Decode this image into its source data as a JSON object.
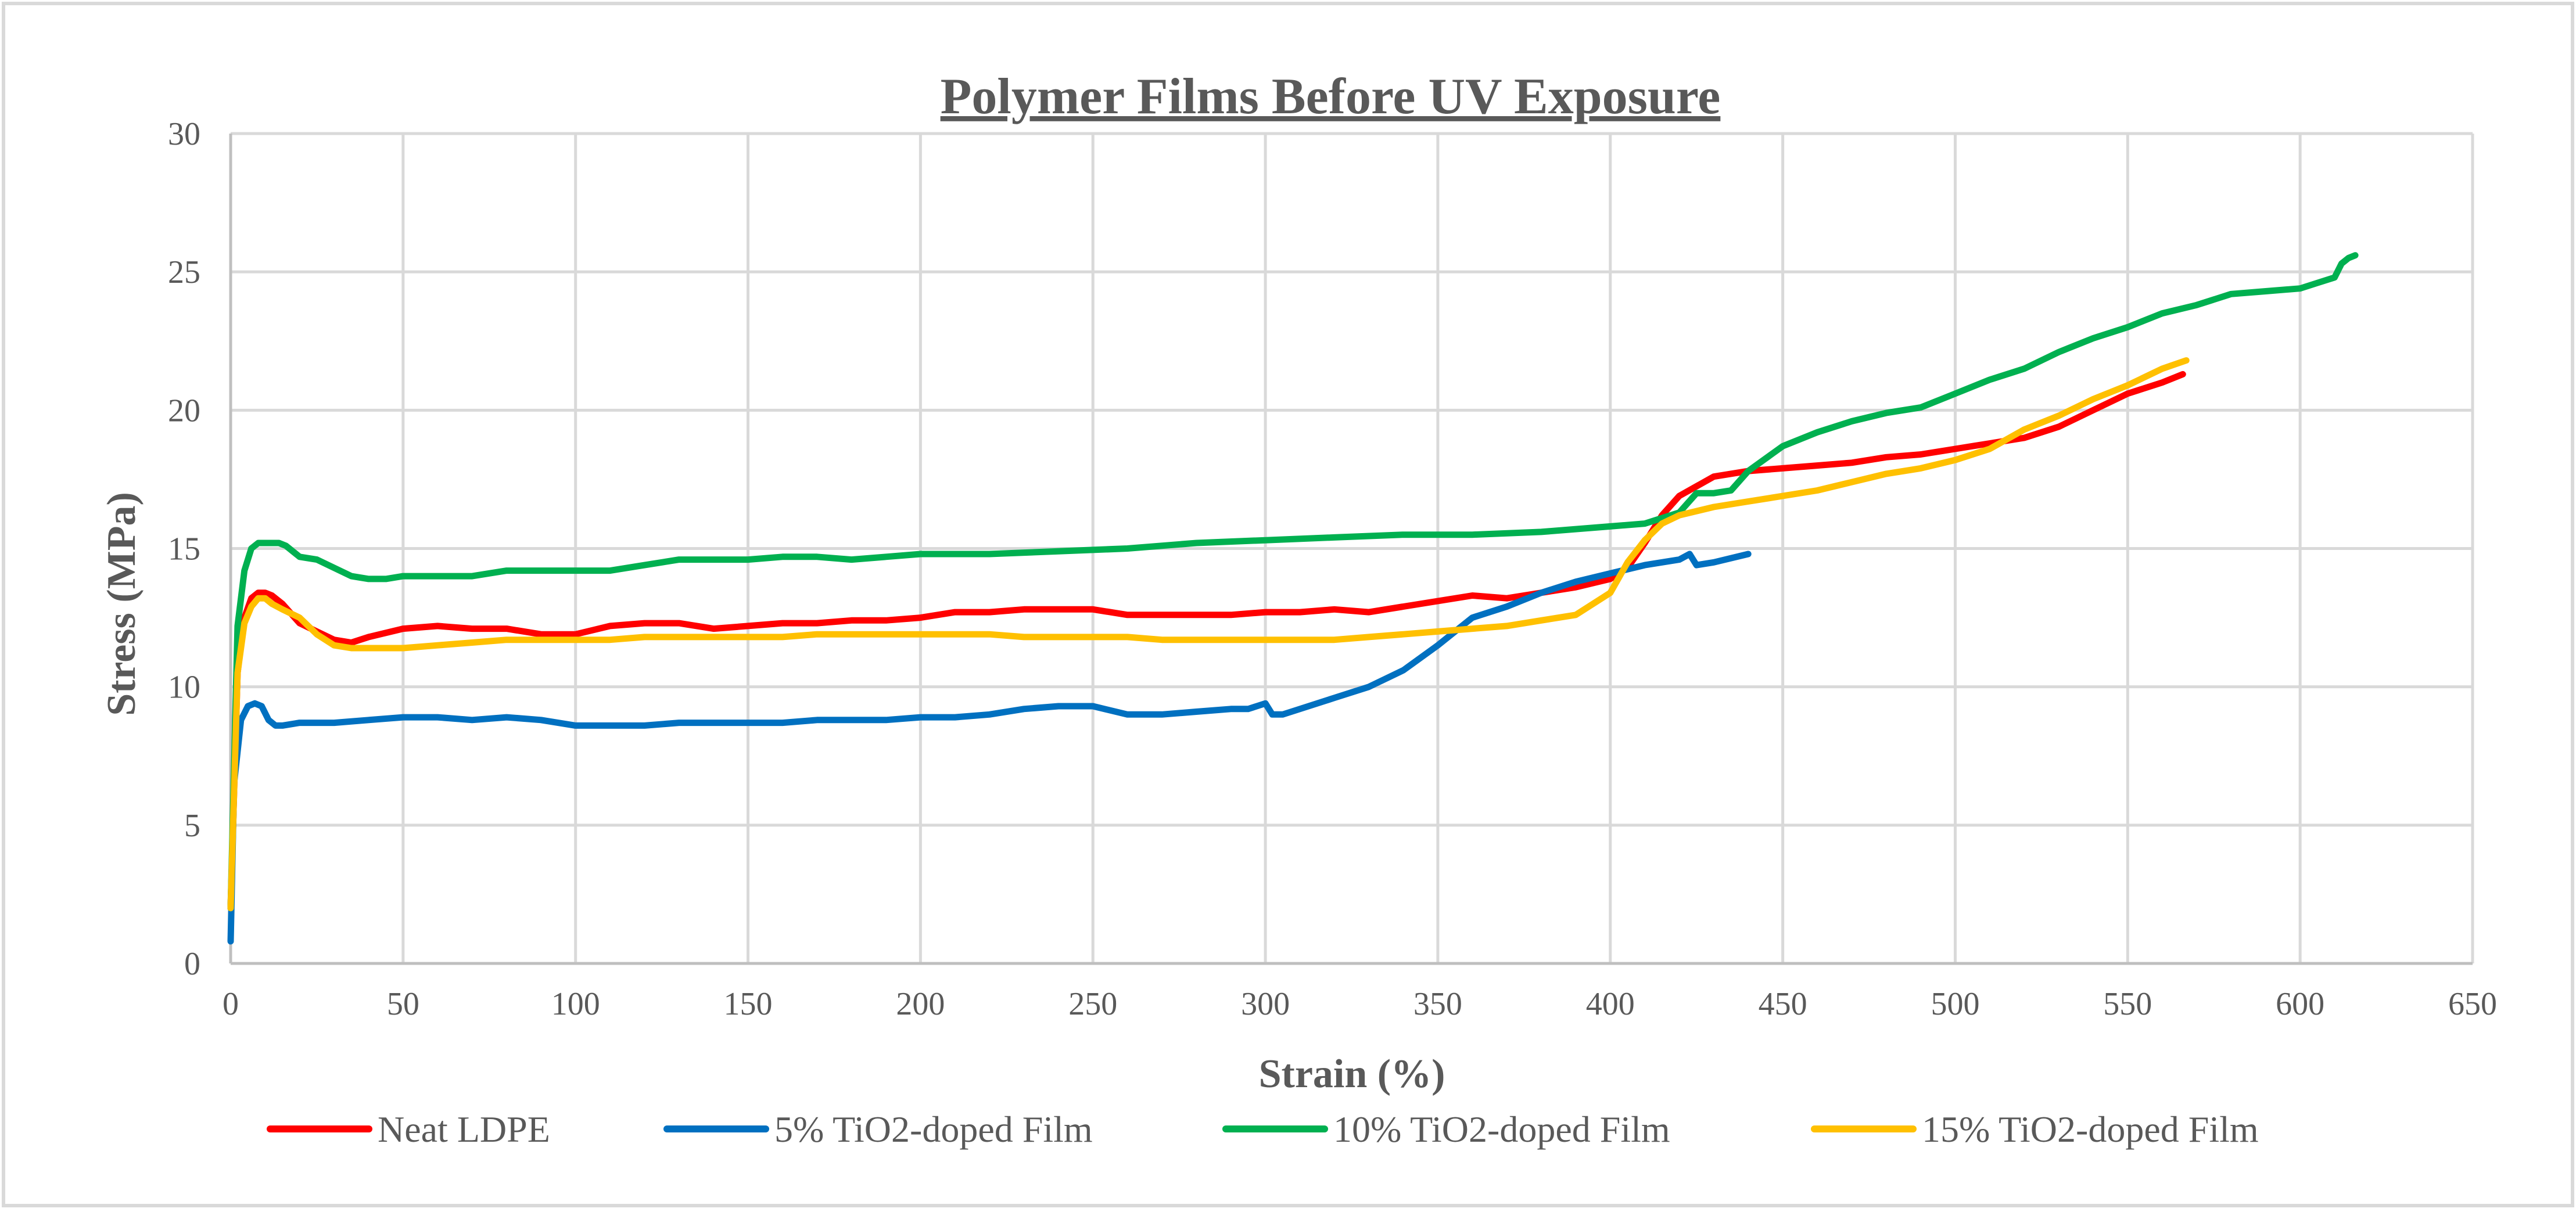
{
  "chart_data": {
    "type": "line",
    "title": "Polymer Films Before UV Exposure",
    "xlabel": "Strain (%)",
    "ylabel": "Stress (MPa)",
    "xlim": [
      0,
      650
    ],
    "ylim": [
      0,
      30
    ],
    "x_ticks": [
      "0",
      "50",
      "100",
      "150",
      "200",
      "250",
      "300",
      "350",
      "400",
      "450",
      "500",
      "550",
      "600",
      "650"
    ],
    "y_ticks": [
      "0",
      "5",
      "10",
      "15",
      "20",
      "25",
      "30"
    ],
    "grid": true,
    "legend_position": "bottom",
    "series": [
      {
        "name": "Neat LDPE",
        "color": "#ff0000",
        "x": [
          0,
          2,
          4,
          6,
          8,
          10,
          12,
          15,
          20,
          25,
          30,
          35,
          40,
          50,
          60,
          70,
          80,
          90,
          100,
          110,
          120,
          130,
          140,
          150,
          160,
          170,
          180,
          190,
          200,
          210,
          220,
          230,
          240,
          250,
          260,
          270,
          280,
          290,
          300,
          310,
          320,
          330,
          340,
          350,
          360,
          370,
          380,
          390,
          400,
          405,
          410,
          415,
          420,
          430,
          440,
          450,
          460,
          470,
          480,
          490,
          500,
          510,
          520,
          530,
          540,
          550,
          560,
          566
        ],
        "y": [
          2,
          10.5,
          12.5,
          13.2,
          13.4,
          13.4,
          13.3,
          13.0,
          12.3,
          12.0,
          11.7,
          11.6,
          11.8,
          12.1,
          12.2,
          12.1,
          12.1,
          11.9,
          11.9,
          12.2,
          12.3,
          12.3,
          12.1,
          12.2,
          12.3,
          12.3,
          12.4,
          12.4,
          12.5,
          12.7,
          12.7,
          12.8,
          12.8,
          12.8,
          12.6,
          12.6,
          12.6,
          12.6,
          12.7,
          12.7,
          12.8,
          12.7,
          12.9,
          13.1,
          13.3,
          13.2,
          13.4,
          13.6,
          13.9,
          14.3,
          15.2,
          16.2,
          16.9,
          17.6,
          17.8,
          17.9,
          18.0,
          18.1,
          18.3,
          18.4,
          18.6,
          18.8,
          19.0,
          19.4,
          20.0,
          20.6,
          21.0,
          21.3
        ]
      },
      {
        "name": "5% TiO2-doped Film",
        "color": "#0070c0",
        "x": [
          0,
          1,
          3,
          5,
          7,
          9,
          11,
          13,
          15,
          20,
          25,
          30,
          40,
          50,
          60,
          70,
          80,
          90,
          100,
          110,
          120,
          130,
          140,
          150,
          160,
          170,
          180,
          190,
          200,
          210,
          220,
          230,
          240,
          250,
          260,
          270,
          280,
          290,
          295,
          300,
          302,
          305,
          310,
          320,
          330,
          340,
          350,
          360,
          370,
          380,
          390,
          400,
          410,
          420,
          423,
          425,
          430,
          440
        ],
        "y": [
          0.8,
          6.5,
          8.8,
          9.3,
          9.4,
          9.3,
          8.8,
          8.6,
          8.6,
          8.7,
          8.7,
          8.7,
          8.8,
          8.9,
          8.9,
          8.8,
          8.9,
          8.8,
          8.6,
          8.6,
          8.6,
          8.7,
          8.7,
          8.7,
          8.7,
          8.8,
          8.8,
          8.8,
          8.9,
          8.9,
          9.0,
          9.2,
          9.3,
          9.3,
          9.0,
          9.0,
          9.1,
          9.2,
          9.2,
          9.4,
          9.0,
          9.0,
          9.2,
          9.6,
          10.0,
          10.6,
          11.5,
          12.5,
          12.9,
          13.4,
          13.8,
          14.1,
          14.4,
          14.6,
          14.8,
          14.4,
          14.5,
          14.8
        ]
      },
      {
        "name": "10% TiO2-doped Film",
        "color": "#00b050",
        "x": [
          0,
          2,
          4,
          6,
          8,
          10,
          12,
          14,
          16,
          18,
          20,
          25,
          30,
          35,
          40,
          45,
          50,
          60,
          70,
          80,
          90,
          100,
          110,
          120,
          130,
          140,
          150,
          160,
          170,
          180,
          190,
          200,
          220,
          240,
          260,
          280,
          300,
          320,
          340,
          360,
          380,
          400,
          410,
          420,
          425,
          430,
          435,
          440,
          450,
          460,
          470,
          480,
          490,
          500,
          510,
          520,
          530,
          540,
          550,
          560,
          570,
          580,
          590,
          600,
          605,
          610,
          612,
          614,
          616
        ],
        "y": [
          2,
          12.2,
          14.2,
          15.0,
          15.2,
          15.2,
          15.2,
          15.2,
          15.1,
          14.9,
          14.7,
          14.6,
          14.3,
          14.0,
          13.9,
          13.9,
          14.0,
          14.0,
          14.0,
          14.2,
          14.2,
          14.2,
          14.2,
          14.4,
          14.6,
          14.6,
          14.6,
          14.7,
          14.7,
          14.6,
          14.7,
          14.8,
          14.8,
          14.9,
          15.0,
          15.2,
          15.3,
          15.4,
          15.5,
          15.5,
          15.6,
          15.8,
          15.9,
          16.3,
          17.0,
          17.0,
          17.1,
          17.8,
          18.7,
          19.2,
          19.6,
          19.9,
          20.1,
          20.6,
          21.1,
          21.5,
          22.1,
          22.6,
          23.0,
          23.5,
          23.8,
          24.2,
          24.3,
          24.4,
          24.6,
          24.8,
          25.3,
          25.5,
          25.6
        ]
      },
      {
        "name": "15% TiO2-doped Film",
        "color": "#ffc000",
        "x": [
          0,
          2,
          4,
          6,
          8,
          10,
          12,
          15,
          20,
          25,
          30,
          35,
          40,
          50,
          60,
          70,
          80,
          90,
          100,
          110,
          120,
          130,
          140,
          150,
          160,
          170,
          180,
          190,
          200,
          210,
          220,
          230,
          240,
          250,
          260,
          270,
          280,
          290,
          300,
          310,
          320,
          330,
          340,
          350,
          360,
          370,
          380,
          390,
          400,
          405,
          410,
          415,
          420,
          430,
          440,
          450,
          460,
          470,
          480,
          490,
          500,
          510,
          520,
          530,
          540,
          550,
          560,
          567
        ],
        "y": [
          2,
          10.5,
          12.3,
          12.9,
          13.2,
          13.2,
          13.0,
          12.8,
          12.5,
          11.9,
          11.5,
          11.4,
          11.4,
          11.4,
          11.5,
          11.6,
          11.7,
          11.7,
          11.7,
          11.7,
          11.8,
          11.8,
          11.8,
          11.8,
          11.8,
          11.9,
          11.9,
          11.9,
          11.9,
          11.9,
          11.9,
          11.8,
          11.8,
          11.8,
          11.8,
          11.7,
          11.7,
          11.7,
          11.7,
          11.7,
          11.7,
          11.8,
          11.9,
          12.0,
          12.1,
          12.2,
          12.4,
          12.6,
          13.4,
          14.5,
          15.3,
          15.9,
          16.2,
          16.5,
          16.7,
          16.9,
          17.1,
          17.4,
          17.7,
          17.9,
          18.2,
          18.6,
          19.3,
          19.8,
          20.4,
          20.9,
          21.5,
          21.8
        ]
      }
    ]
  }
}
